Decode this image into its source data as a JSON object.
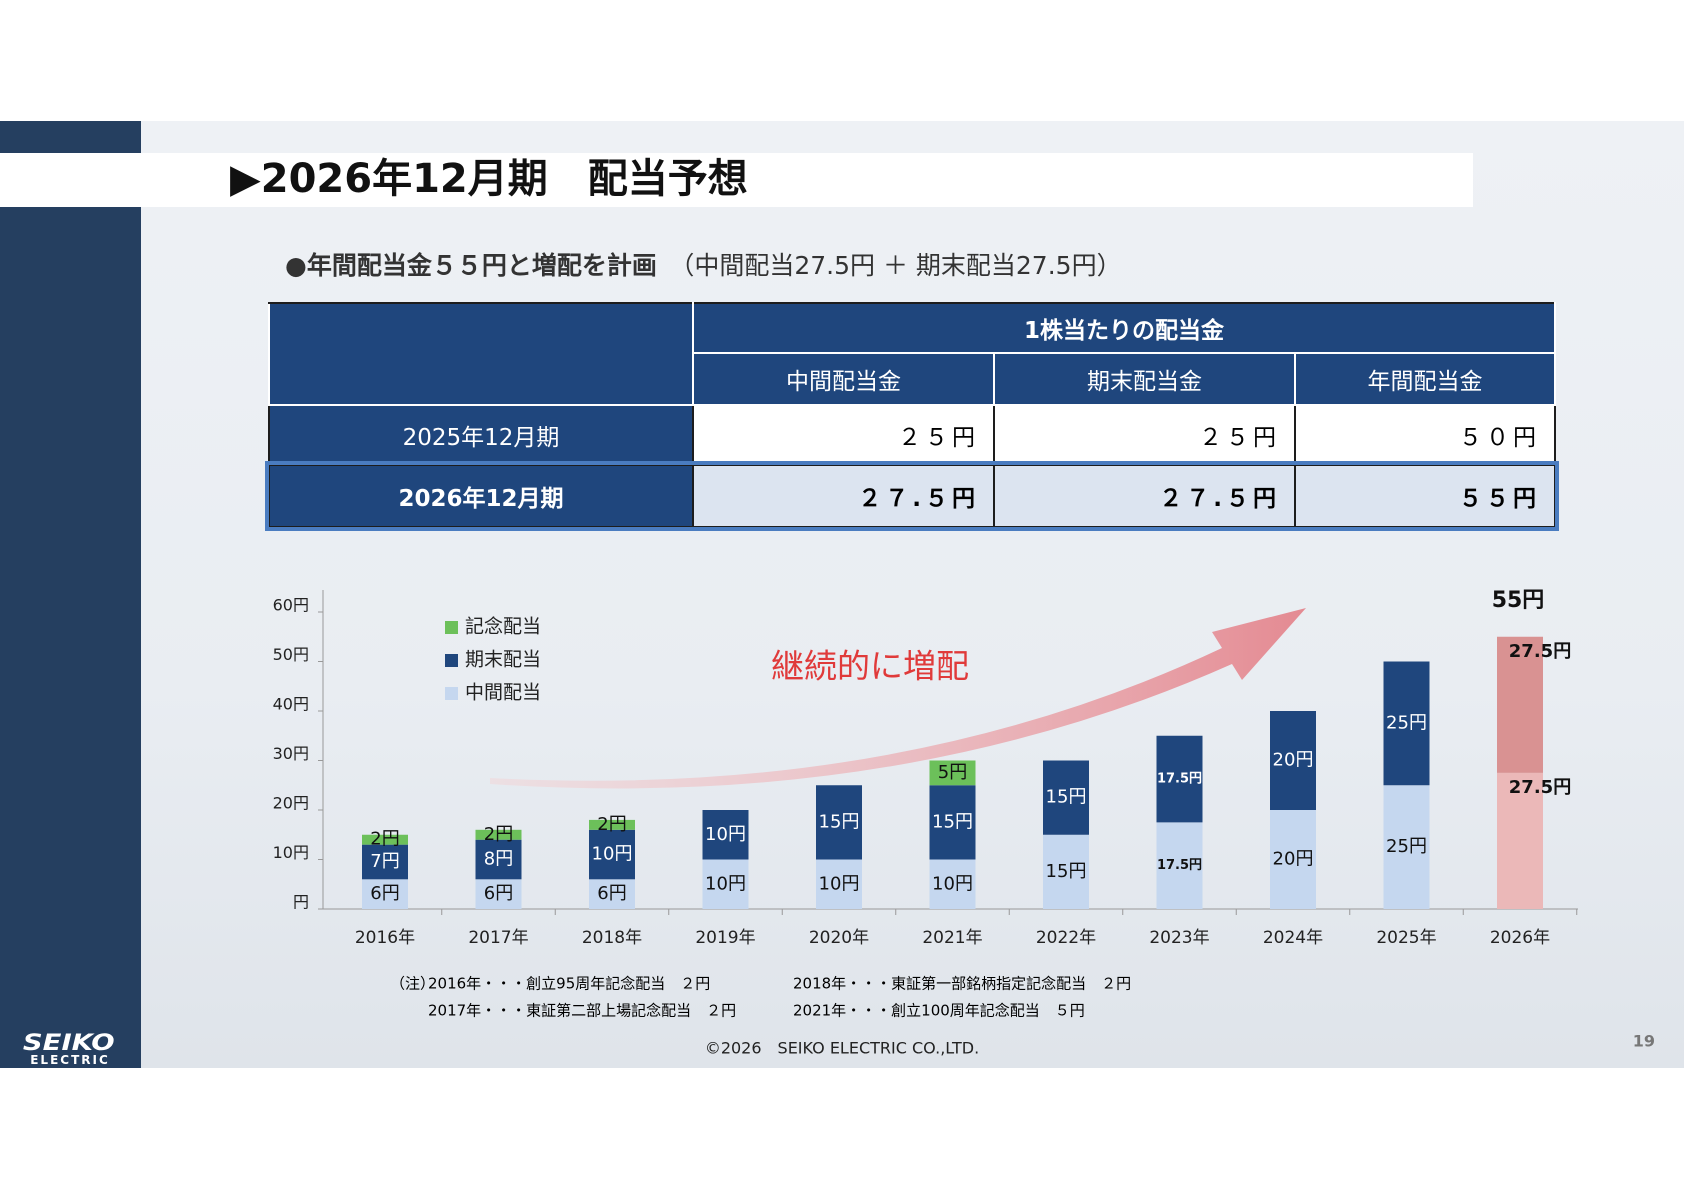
{
  "header": {
    "title": "▶2026年12月期　配当予想"
  },
  "bullet": {
    "main": "●年間配当金５５円と増配を計画",
    "detail": "（中間配当27.5円 ＋ 期末配当27.5円）"
  },
  "table": {
    "group_header": "1株当たりの配当金",
    "columns": [
      "中間配当金",
      "期末配当金",
      "年間配当金"
    ],
    "rows": [
      {
        "label": "2025年12月期",
        "cells": [
          "２５円",
          "２５円",
          "５０円"
        ]
      },
      {
        "label": "2026年12月期",
        "cells": [
          "２７.５円",
          "２７.５円",
          "５５円"
        ]
      }
    ]
  },
  "chart_data": {
    "type": "bar",
    "stacked": true,
    "categories": [
      "2016年",
      "2017年",
      "2018年",
      "2019年",
      "2020年",
      "2021年",
      "2022年",
      "2023年",
      "2024年",
      "2025年",
      "2026年"
    ],
    "series": [
      {
        "name": "中間配当",
        "color": "#c5d7ef",
        "colors": [
          "#c5d7ef",
          "#c5d7ef",
          "#c5d7ef",
          "#c5d7ef",
          "#c5d7ef",
          "#c5d7ef",
          "#c5d7ef",
          "#c5d7ef",
          "#c5d7ef",
          "#c5d7ef",
          "#ebb8b8"
        ],
        "values": [
          6,
          6,
          6,
          10,
          10,
          10,
          15,
          17.5,
          20,
          25,
          27.5
        ],
        "value_labels": [
          "6円",
          "6円",
          "6円",
          "10円",
          "10円",
          "10円",
          "15円",
          "17.5円",
          "20円",
          "25円",
          "27.5円"
        ]
      },
      {
        "name": "期末配当",
        "color": "#1f467d",
        "colors": [
          "#1f467d",
          "#1f467d",
          "#1f467d",
          "#1f467d",
          "#1f467d",
          "#1f467d",
          "#1f467d",
          "#1f467d",
          "#1f467d",
          "#1f467d",
          "#d99292"
        ],
        "values": [
          7,
          8,
          10,
          10,
          15,
          15,
          15,
          17.5,
          20,
          25,
          27.5
        ],
        "value_labels": [
          "7円",
          "8円",
          "10円",
          "10円",
          "15円",
          "15円",
          "15円",
          "17.5円",
          "20円",
          "25円",
          "27.5円"
        ]
      },
      {
        "name": "記念配当",
        "color": "#6cc05a",
        "colors": [
          "#6cc05a",
          "#6cc05a",
          "#6cc05a",
          "#6cc05a",
          "#6cc05a",
          "#6cc05a",
          "#6cc05a",
          "#6cc05a",
          "#6cc05a",
          "#6cc05a",
          "#6cc05a"
        ],
        "values": [
          2,
          2,
          2,
          null,
          null,
          5,
          null,
          null,
          null,
          null,
          null
        ],
        "value_labels": [
          "2円",
          "2円",
          "2円",
          null,
          null,
          "5円",
          null,
          null,
          null,
          null,
          null
        ]
      }
    ],
    "ylim": [
      0,
      60
    ],
    "yticks": [
      {
        "value": 0,
        "label": "円"
      },
      {
        "value": 10,
        "label": "10円"
      },
      {
        "value": 20,
        "label": "20円"
      },
      {
        "value": 30,
        "label": "30円"
      },
      {
        "value": 40,
        "label": "40円"
      },
      {
        "value": 50,
        "label": "50円"
      },
      {
        "value": 60,
        "label": "60円"
      }
    ],
    "total_label": "55円",
    "annotation": "継続的に増配"
  },
  "notes": {
    "prefix": "（注）",
    "items": [
      "2016年・・・創立95周年記念配当　２円",
      "2017年・・・東証第二部上場記念配当　２円",
      "2018年・・・東証第一部銘柄指定記念配当　２円",
      "2021年・・・創立100周年記念配当　５円"
    ]
  },
  "footer": {
    "copyright": "©2026　SEIKO ELECTRIC CO.,LTD.",
    "page": "19",
    "logo_top": "SEIKO",
    "logo_bottom": "ELECTRIC"
  }
}
